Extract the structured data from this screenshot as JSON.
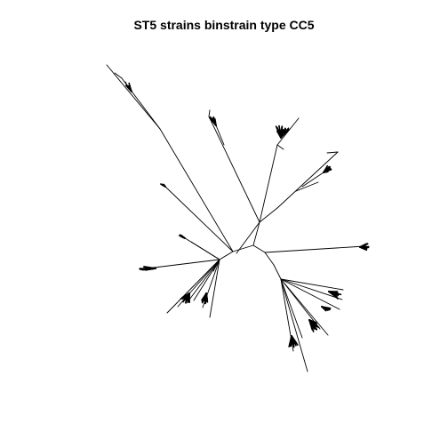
{
  "title": "ST5 strains binstrain type CC5",
  "colors": {
    "background": "#ffffff",
    "branch": "#000000"
  },
  "chart_data": {
    "type": "unrooted-phylogenetic-tree",
    "title": "ST5 strains binstrain type CC5",
    "tip_labels_shown": false,
    "axes_shown": false
  }
}
